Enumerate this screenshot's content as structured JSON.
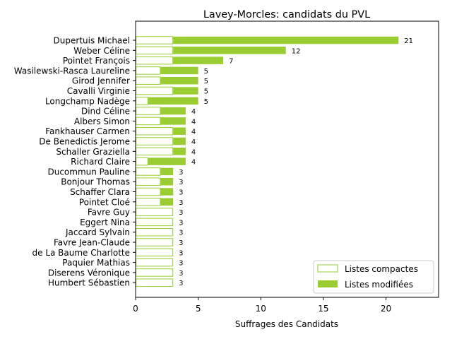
{
  "chart_data": {
    "type": "bar",
    "orientation": "horizontal",
    "stacked": true,
    "title": "Lavey-Morcles: candidats du PVL",
    "xlabel": "Suffrages des Candidats",
    "ylabel": "",
    "xlim": [
      0,
      24.2
    ],
    "xticks": [
      0,
      5,
      10,
      15,
      20
    ],
    "grid": false,
    "legend_position": "lower-right",
    "categories": [
      "Dupertuis Michael",
      "Weber Céline",
      "Pointet François",
      "Wasilewski-Rasca Laureline",
      "Girod Jennifer",
      "Cavalli Virginie",
      "Longchamp Nadège",
      "Dind Céline",
      "Albers Simon",
      "Fankhauser Carmen",
      "De Benedictis Jerome",
      "Schaller Graziella",
      "Richard Claire",
      "Ducommun Pauline",
      "Bonjour Thomas",
      "Schaffer Clara",
      "Pointet Cloé",
      "Favre Guy",
      "Eggert Nina",
      "Jaccard Sylvain",
      "Favre Jean-Claude",
      "de La Baume Charlotte",
      "Paquier Mathias",
      "Diserens Véronique",
      "Humbert Sébastien"
    ],
    "series": [
      {
        "name": "Listes compactes",
        "color": "#9acd32",
        "style": "outline",
        "values": [
          3,
          3,
          3,
          2,
          2,
          3,
          1,
          2,
          2,
          3,
          3,
          3,
          1,
          2,
          2,
          2,
          2,
          3,
          3,
          3,
          3,
          3,
          3,
          3,
          3
        ]
      },
      {
        "name": "Listes modifiées",
        "color": "#9acd32",
        "style": "filled",
        "values": [
          18,
          9,
          4,
          3,
          3,
          2,
          4,
          2,
          2,
          1,
          1,
          1,
          3,
          1,
          1,
          1,
          1,
          0,
          0,
          0,
          0,
          0,
          0,
          0,
          0
        ]
      }
    ],
    "totals": [
      21,
      12,
      7,
      5,
      5,
      5,
      5,
      4,
      4,
      4,
      4,
      4,
      4,
      3,
      3,
      3,
      3,
      3,
      3,
      3,
      3,
      3,
      3,
      3,
      3
    ]
  }
}
